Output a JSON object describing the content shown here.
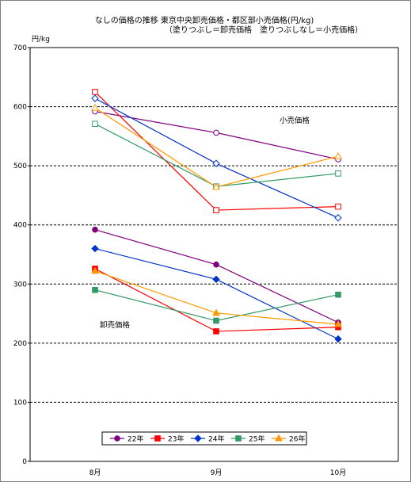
{
  "chart_data": {
    "type": "line",
    "title": "なしの価格の推移 東京中央卸売価格・都区部小売価格(円/kg)",
    "subtitle": "（塗りつぶし＝卸売価格　塗りつぶしなし＝小売価格）",
    "ylabel": "円/kg",
    "xlabel": "",
    "categories": [
      "8月",
      "9月",
      "10月"
    ],
    "ylim": [
      0,
      700
    ],
    "yticks": [
      0,
      100,
      200,
      300,
      400,
      500,
      600,
      700
    ],
    "grid": true,
    "legend_position": "bottom",
    "annotations": [
      {
        "text": "小売価格"
      },
      {
        "text": "卸売価格"
      }
    ],
    "series": [
      {
        "name": "22年",
        "color": "#800080",
        "marker": "circle"
      },
      {
        "name": "23年",
        "color": "#ff0000",
        "marker": "square"
      },
      {
        "name": "24年",
        "color": "#0033cc",
        "marker": "diamond"
      },
      {
        "name": "25年",
        "color": "#339966",
        "marker": "square"
      },
      {
        "name": "26年",
        "color": "#ff9900",
        "marker": "triangle"
      }
    ],
    "retail": [
      {
        "series": "22年",
        "values": [
          592,
          556,
          511
        ]
      },
      {
        "series": "23年",
        "values": [
          625,
          425,
          431
        ]
      },
      {
        "series": "24年",
        "values": [
          614,
          504,
          412
        ]
      },
      {
        "series": "25年",
        "values": [
          571,
          465,
          487
        ]
      },
      {
        "series": "26年",
        "values": [
          598,
          464,
          516
        ]
      }
    ],
    "wholesale": [
      {
        "series": "22年",
        "values": [
          392,
          333,
          235
        ]
      },
      {
        "series": "23年",
        "values": [
          326,
          220,
          227
        ]
      },
      {
        "series": "24年",
        "values": [
          360,
          308,
          207
        ]
      },
      {
        "series": "25年",
        "values": [
          290,
          238,
          282
        ]
      },
      {
        "series": "26年",
        "values": [
          322,
          251,
          232
        ]
      }
    ]
  }
}
